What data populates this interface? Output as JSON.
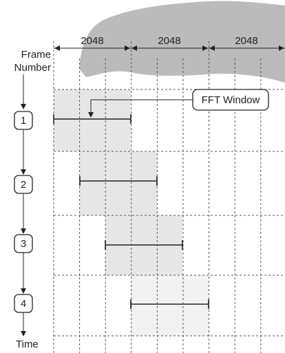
{
  "frame_label": [
    "Frame",
    "Number"
  ],
  "segment_sizes": [
    "2048",
    "2048",
    "2048"
  ],
  "frames": [
    {
      "label": "1"
    },
    {
      "label": "2"
    },
    {
      "label": "3"
    },
    {
      "label": "4"
    }
  ],
  "callout": "FFT Window",
  "time_label": "Time"
}
